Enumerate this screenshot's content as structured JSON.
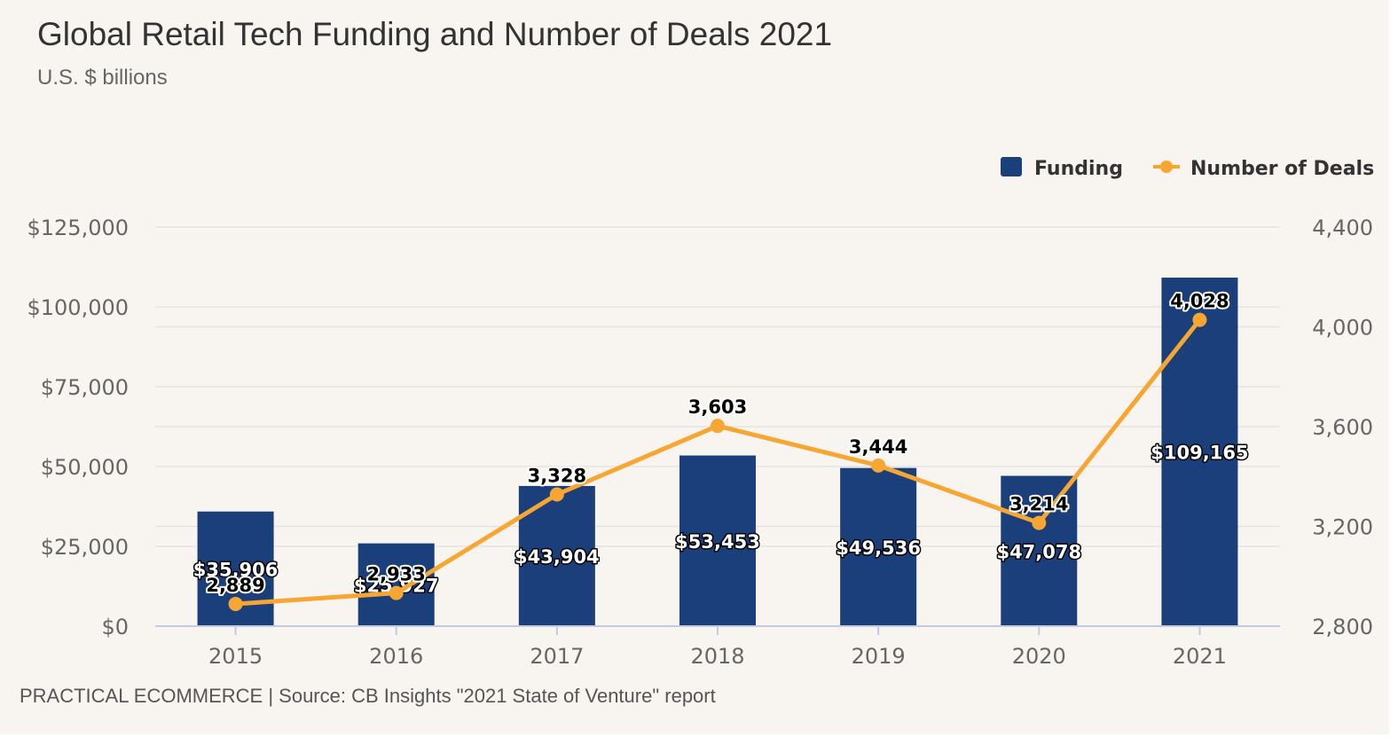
{
  "header": {
    "title": "Global Retail Tech Funding and Number of Deals 2021",
    "subtitle": "U.S. $ billions"
  },
  "footer": {
    "source": "PRACTICAL ECOMMERCE | Source: CB Insights \"2021 State of Venture\" report"
  },
  "colors": {
    "background": "#f8f4f0",
    "funding": "#1b3f7a",
    "deals": "#f7a631",
    "grid": "#e3e3e3"
  },
  "chart_data": {
    "type": "bar",
    "categories": [
      "2015",
      "2016",
      "2017",
      "2018",
      "2019",
      "2020",
      "2021"
    ],
    "series": [
      {
        "name": "Funding",
        "type": "bar",
        "axis": "left",
        "values": [
          35906,
          25927,
          43904,
          53453,
          49536,
          47078,
          109165
        ],
        "labels": [
          "$35,906",
          "$25,927",
          "$43,904",
          "$53,453",
          "$49,536",
          "$47,078",
          "$109,165"
        ]
      },
      {
        "name": "Number of Deals",
        "type": "line",
        "axis": "right",
        "values": [
          2889,
          2933,
          3328,
          3603,
          3444,
          3214,
          4028
        ],
        "labels": [
          "2,889",
          "2,933",
          "3,328",
          "3,603",
          "3,444",
          "3,214",
          "4,028"
        ]
      }
    ],
    "y_left": {
      "ylim": [
        0,
        125000
      ],
      "ticks": [
        0,
        25000,
        50000,
        75000,
        100000,
        125000
      ],
      "tick_labels": [
        "$0",
        "$25,000",
        "$50,000",
        "$75,000",
        "$100,000",
        "$125,000"
      ]
    },
    "y_right": {
      "ylim": [
        2800,
        4400
      ],
      "ticks": [
        2800,
        3200,
        3600,
        4000,
        4400
      ],
      "tick_labels": [
        "2,800",
        "3,200",
        "3,600",
        "4,000",
        "4,400"
      ]
    },
    "grid": true,
    "legend_position": "top-right"
  }
}
